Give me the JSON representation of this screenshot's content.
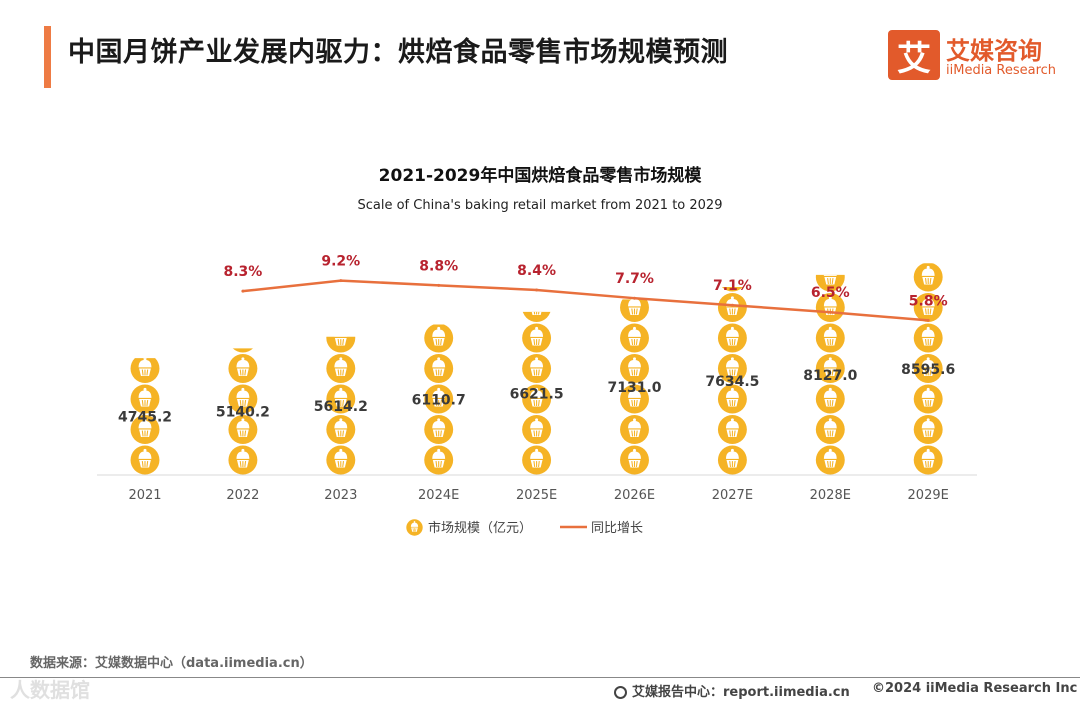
{
  "page": {
    "title": "中国月饼产业发展内驱力：烘焙食品零售市场规模预测",
    "logo_cn": "艾媒咨询",
    "logo_en": "iiMedia Research",
    "logo_mark": "艾"
  },
  "chart_data": {
    "type": "bar",
    "title": "2021-2029年中国烘焙食品零售市场规模",
    "subtitle": "Scale of China's baking retail market from 2021 to 2029",
    "categories": [
      "2021",
      "2022",
      "2023",
      "2024E",
      "2025E",
      "2026E",
      "2027E",
      "2028E",
      "2029E"
    ],
    "series": [
      {
        "name": "市场规模（亿元）",
        "type": "pictorial-bar",
        "values": [
          4745.2,
          5140.2,
          5614.2,
          6110.7,
          6621.5,
          7131.0,
          7634.5,
          8127.0,
          8595.6
        ],
        "labels": [
          "4745.2",
          "5140.2",
          "5614.2",
          "6110.7",
          "6621.5",
          "7131.0",
          "7634.5",
          "8127.0",
          "8595.6"
        ],
        "color": "#f5b325"
      },
      {
        "name": "同比增长",
        "type": "line",
        "values": [
          null,
          8.3,
          9.2,
          8.8,
          8.4,
          7.7,
          7.1,
          6.5,
          5.8
        ],
        "labels": [
          "",
          "8.3%",
          "9.2%",
          "8.8%",
          "8.4%",
          "7.7%",
          "7.1%",
          "6.5%",
          "5.8%"
        ],
        "color": "#e8703d",
        "label_color": "#b8232f"
      }
    ],
    "legend_position": "bottom-center"
  },
  "footer": {
    "source": "数据来源：艾媒数据中心（data.iimedia.cn）",
    "report": "艾媒报告中心：report.iimedia.cn",
    "copyright": "©2024  iiMedia Research  Inc",
    "watermark": "人数据馆"
  }
}
